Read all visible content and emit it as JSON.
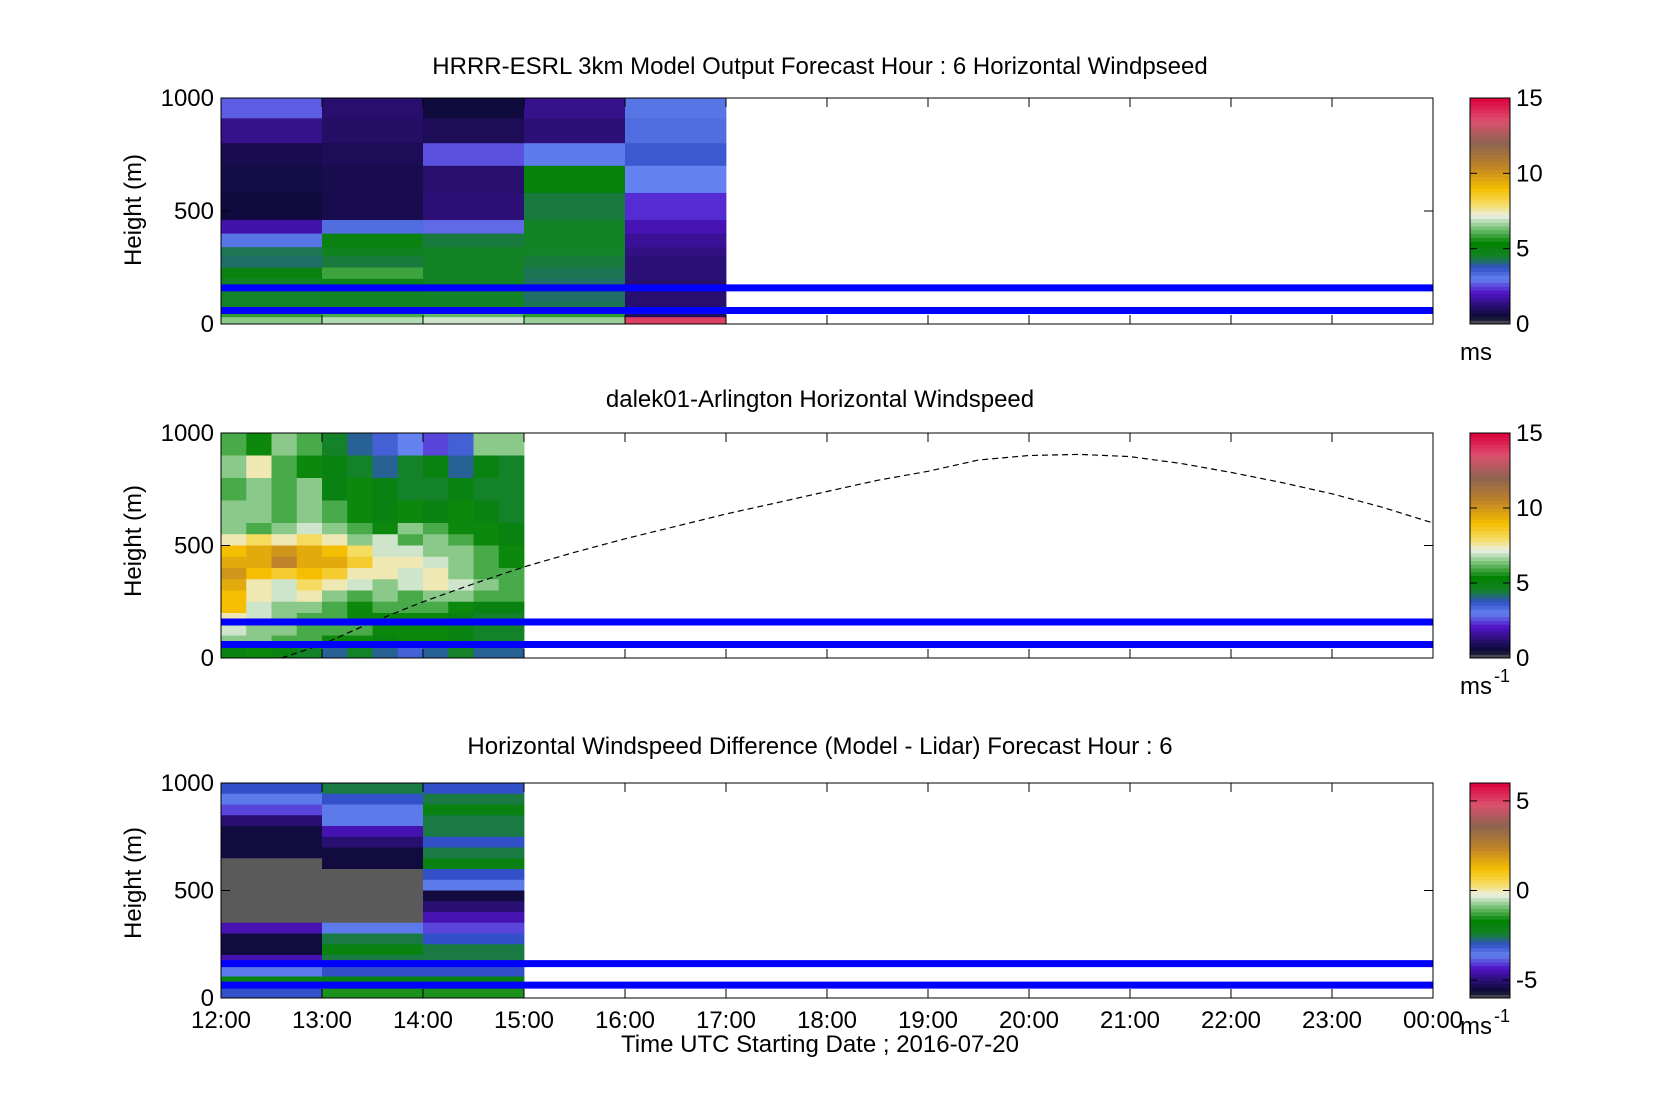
{
  "figure": {
    "xlabel": "Time UTC  Starting Date ; 2016-07-20",
    "x_ticks": [
      "12:00",
      "13:00",
      "14:00",
      "15:00",
      "16:00",
      "17:00",
      "18:00",
      "19:00",
      "20:00",
      "21:00",
      "22:00",
      "23:00",
      "00:00"
    ],
    "reference_line_color": "#0000ff",
    "reference_heights_m": [
      160,
      60
    ]
  },
  "chart_data": [
    {
      "type": "heatmap",
      "title": "HRRR-ESRL 3km Model Output   Forecast Hour : 6 Horizontal Windpseed",
      "ylabel": "Height (m)",
      "ylim": [
        0,
        1000
      ],
      "y_ticks": [
        "0",
        "500",
        "1000"
      ],
      "xlim_hours": [
        12,
        24
      ],
      "colorbar": {
        "range": [
          0,
          15
        ],
        "tick_values": [
          0,
          5,
          10,
          15
        ],
        "tick_labels": [
          "0",
          "5",
          "10",
          "15"
        ],
        "unit": "ms",
        "unit_sup": ""
      },
      "data_hours": [
        12,
        13,
        14,
        15,
        16
      ],
      "column_width_hours": 1,
      "levels_m": [
        1000,
        910,
        800,
        700,
        580,
        460,
        400,
        340,
        300,
        250,
        200,
        150,
        100,
        60,
        30
      ],
      "values": [
        [
          2.7,
          1.2,
          0.6,
          1.5,
          3.2
        ],
        [
          1.5,
          1.1,
          0.9,
          1.3,
          3.3
        ],
        [
          0.8,
          0.9,
          2.6,
          3.1,
          3.6
        ],
        [
          0.7,
          0.8,
          1.2,
          5.2,
          3.0
        ],
        [
          0.6,
          0.8,
          1.3,
          4.4,
          2.3
        ],
        [
          1.8,
          3.3,
          2.8,
          4.6,
          1.9
        ],
        [
          3.2,
          5.0,
          4.4,
          4.6,
          1.6
        ],
        [
          4.3,
          4.7,
          4.6,
          4.5,
          1.4
        ],
        [
          4.2,
          4.4,
          4.6,
          4.4,
          1.3
        ],
        [
          5.0,
          5.9,
          4.6,
          4.3,
          1.3
        ],
        [
          4.6,
          4.8,
          4.6,
          4.2,
          1.2
        ],
        [
          4.5,
          4.6,
          4.5,
          4.2,
          1.2
        ],
        [
          4.5,
          4.6,
          4.6,
          4.3,
          1.2
        ],
        [
          5.8,
          6.0,
          6.2,
          5.8,
          1.0
        ],
        [
          6.5,
          6.8,
          7.0,
          6.6,
          13.8
        ]
      ]
    },
    {
      "type": "heatmap",
      "title": "dalek01-Arlington  Horizontal Windspeed",
      "ylabel": "Height (m)",
      "ylim": [
        0,
        1000
      ],
      "y_ticks": [
        "0",
        "500",
        "1000"
      ],
      "xlim_hours": [
        12,
        24
      ],
      "colorbar": {
        "range": [
          0,
          15
        ],
        "tick_values": [
          0,
          5,
          10,
          15
        ],
        "tick_labels": [
          "0",
          "5",
          "10",
          "15"
        ],
        "unit": "ms",
        "unit_sup": "-1"
      },
      "data_hours": [
        12,
        12.25,
        12.5,
        12.75,
        13,
        13.25,
        13.5,
        13.75,
        14,
        14.25,
        14.5,
        14.75
      ],
      "column_width_hours": 0.25,
      "levels_m": [
        1000,
        900,
        800,
        700,
        600,
        550,
        500,
        450,
        400,
        350,
        300,
        250,
        200,
        150,
        100,
        50
      ],
      "values": [
        [
          6.0,
          5.5,
          6.5,
          6.0,
          4.5,
          4.0,
          3.5,
          3.0,
          2.5,
          3.5,
          6.5,
          6.5
        ],
        [
          6.5,
          7.5,
          6.0,
          5.5,
          5.0,
          4.5,
          4.0,
          4.5,
          5.0,
          4.0,
          5.0,
          4.5
        ],
        [
          6.0,
          6.5,
          6.0,
          6.5,
          5.0,
          5.5,
          5.0,
          4.5,
          4.5,
          5.0,
          4.5,
          4.5
        ],
        [
          6.5,
          6.5,
          6.0,
          6.5,
          6.0,
          5.5,
          5.0,
          5.5,
          5.0,
          5.5,
          5.0,
          4.5
        ],
        [
          6.5,
          6.0,
          6.5,
          7.0,
          6.5,
          6.0,
          5.5,
          6.5,
          6.0,
          5.5,
          5.5,
          5.0
        ],
        [
          7.5,
          8.0,
          7.5,
          8.0,
          7.5,
          6.5,
          7.0,
          6.0,
          6.5,
          6.0,
          5.5,
          5.0
        ],
        [
          9.0,
          9.5,
          10.0,
          9.5,
          9.0,
          8.0,
          7.0,
          7.0,
          6.5,
          6.5,
          6.0,
          5.5
        ],
        [
          9.5,
          9.5,
          10.5,
          9.5,
          9.5,
          8.5,
          7.5,
          7.5,
          7.0,
          6.5,
          6.0,
          5.5
        ],
        [
          10.0,
          9.0,
          8.5,
          9.0,
          8.5,
          7.5,
          7.5,
          7.0,
          7.5,
          6.5,
          6.0,
          6.0
        ],
        [
          9.5,
          7.5,
          7.0,
          8.0,
          7.5,
          7.0,
          6.5,
          7.0,
          7.5,
          7.0,
          6.5,
          6.0
        ],
        [
          9.0,
          7.5,
          7.0,
          7.5,
          6.5,
          6.0,
          6.5,
          6.0,
          6.5,
          6.5,
          6.0,
          6.0
        ],
        [
          9.0,
          7.0,
          6.5,
          6.5,
          6.0,
          5.5,
          6.0,
          6.0,
          6.0,
          5.5,
          5.0,
          5.0
        ],
        [
          7.5,
          7.0,
          6.5,
          6.0,
          6.0,
          5.5,
          5.5,
          5.5,
          5.5,
          5.0,
          4.5,
          4.5
        ],
        [
          7.0,
          6.5,
          6.5,
          6.0,
          6.0,
          6.0,
          5.5,
          5.5,
          5.5,
          5.0,
          4.5,
          4.5
        ],
        [
          6.5,
          6.5,
          6.0,
          6.0,
          5.5,
          5.5,
          5.0,
          5.5,
          5.5,
          5.0,
          4.5,
          4.5
        ],
        [
          5.0,
          5.5,
          5.0,
          4.5,
          4.0,
          4.5,
          4.0,
          3.5,
          4.0,
          4.5,
          4.0,
          4.0
        ]
      ],
      "mixing_height_curve": {
        "hours": [
          12.6,
          13.0,
          13.5,
          14.0,
          14.5,
          15.0,
          15.5,
          16.0,
          16.5,
          17.0,
          17.5,
          18.0,
          18.5,
          19.0,
          19.5,
          20.0,
          20.5,
          21.0,
          21.5,
          22.0,
          22.5,
          23.0,
          23.5,
          24.0
        ],
        "heights_m": [
          0,
          60,
          160,
          250,
          330,
          405,
          470,
          530,
          585,
          640,
          690,
          740,
          790,
          830,
          880,
          900,
          905,
          895,
          865,
          825,
          780,
          730,
          670,
          600
        ]
      }
    },
    {
      "type": "heatmap",
      "title": "Horizontal Windspeed Difference (Model - Lidar) Forecast Hour : 6",
      "ylabel": "Height (m)",
      "ylim": [
        0,
        1000
      ],
      "y_ticks": [
        "0",
        "500",
        "1000"
      ],
      "xlim_hours": [
        12,
        24
      ],
      "colorbar": {
        "range": [
          -6,
          6
        ],
        "tick_values": [
          -5,
          0,
          5
        ],
        "tick_labels": [
          "-5",
          "0",
          "5"
        ],
        "unit": "ms",
        "unit_sup": "-1"
      },
      "data_hours": [
        12,
        13,
        14
      ],
      "column_width_hours": 1,
      "levels_m": [
        1000,
        950,
        900,
        850,
        800,
        750,
        700,
        650,
        600,
        550,
        500,
        450,
        400,
        350,
        300,
        250,
        200,
        150,
        100,
        50
      ],
      "values": [
        [
          -3.0,
          -2.5,
          -3.0
        ],
        [
          -3.5,
          -3.0,
          -2.5
        ],
        [
          -4.0,
          -3.5,
          -2.0
        ],
        [
          -5.0,
          -3.5,
          -2.5
        ],
        [
          -5.5,
          -4.5,
          -2.5
        ],
        [
          -5.5,
          -5.0,
          -3.0
        ],
        [
          -5.5,
          -5.5,
          -2.5
        ],
        [
          -6.5,
          -5.5,
          -2.0
        ],
        [
          -6.5,
          -6.5,
          -3.0
        ],
        [
          -6.5,
          -6.5,
          -3.5
        ],
        [
          -6.5,
          -6.5,
          -5.5
        ],
        [
          -6.5,
          -6.5,
          -5.0
        ],
        [
          -6.5,
          -6.5,
          -4.5
        ],
        [
          -4.5,
          -3.5,
          -4.0
        ],
        [
          -5.5,
          -2.5,
          -3.0
        ],
        [
          -5.5,
          -2.0,
          -2.5
        ],
        [
          -4.5,
          -2.5,
          -2.5
        ],
        [
          -3.5,
          -3.0,
          -3.0
        ],
        [
          -2.0,
          -2.0,
          -2.0
        ],
        [
          -3.0,
          -1.5,
          -1.5
        ]
      ]
    }
  ]
}
